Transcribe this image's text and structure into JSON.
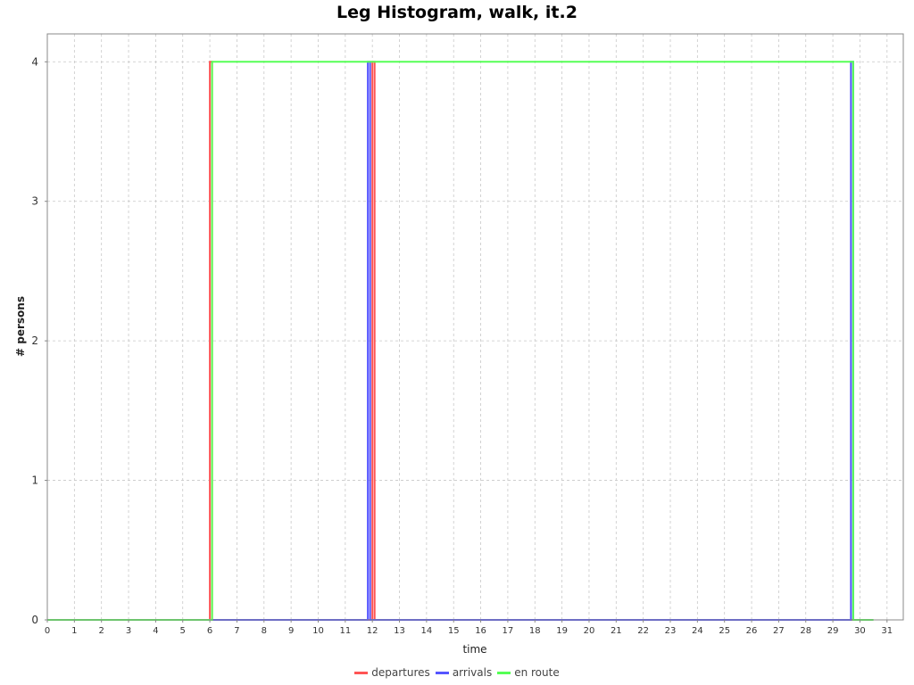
{
  "chart_data": {
    "type": "line",
    "title": "Leg Histogram, walk, it.2",
    "xlabel": "time",
    "ylabel": "# persons",
    "xlim": [
      0,
      31.6
    ],
    "ylim": [
      0,
      4.2
    ],
    "x_ticks": [
      0,
      1,
      2,
      3,
      4,
      5,
      6,
      7,
      8,
      9,
      10,
      11,
      12,
      13,
      14,
      15,
      16,
      17,
      18,
      19,
      20,
      21,
      22,
      23,
      24,
      25,
      26,
      27,
      28,
      29,
      30,
      31
    ],
    "y_ticks": [
      0,
      1,
      2,
      3,
      4
    ],
    "grid": true,
    "legend": "bottom",
    "series": [
      {
        "name": "departures",
        "color": "#ff5555",
        "x": [
          0,
          6.0,
          6.0,
          6.083,
          6.083,
          12.0,
          12.0,
          12.083,
          12.083,
          30.2
        ],
        "y": [
          0,
          0,
          4,
          4,
          0,
          0,
          4,
          4,
          0,
          0
        ]
      },
      {
        "name": "arrivals",
        "color": "#5555ff",
        "x": [
          0,
          11.833,
          11.833,
          11.917,
          11.917,
          29.667,
          29.667,
          29.75,
          29.75,
          30.2
        ],
        "y": [
          0,
          0,
          4,
          4,
          0,
          0,
          4,
          4,
          0,
          0
        ]
      },
      {
        "name": "en route",
        "color": "#55ff55",
        "x": [
          0,
          6.083,
          6.083,
          29.75,
          29.75,
          30.5
        ],
        "y": [
          0,
          0,
          4,
          4,
          0,
          0
        ]
      }
    ]
  }
}
